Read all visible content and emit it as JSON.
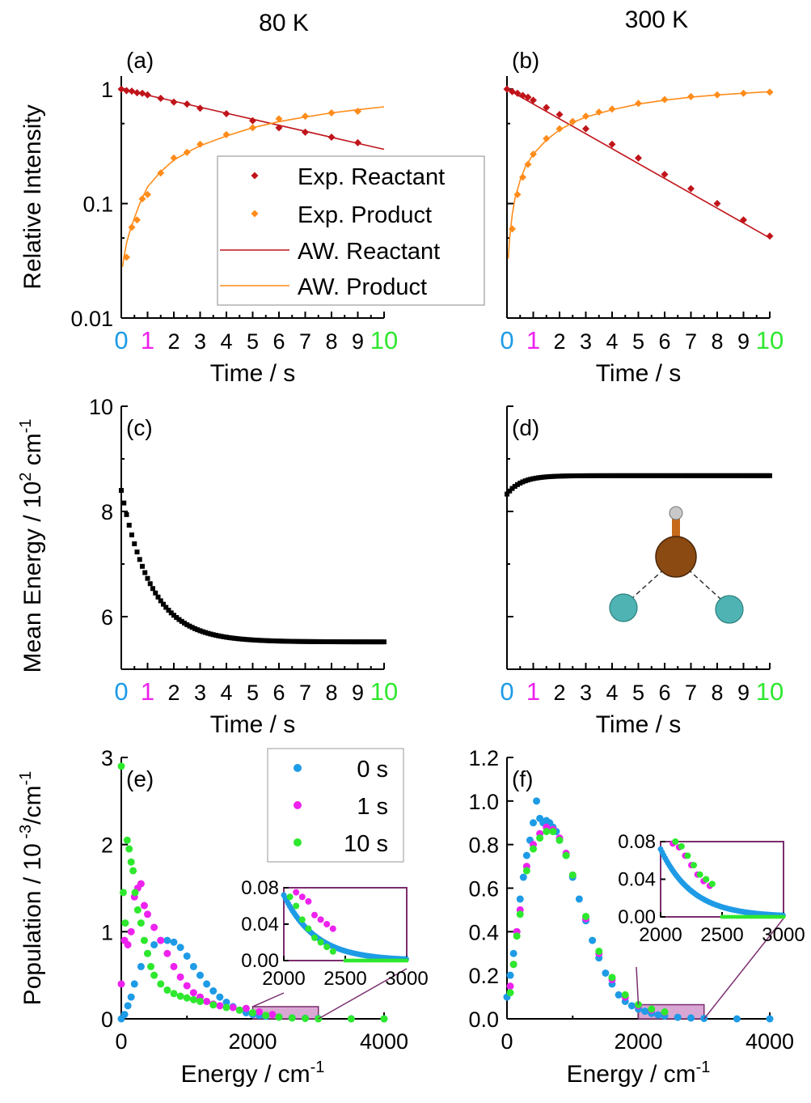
{
  "figure": {
    "column_titles": [
      "80 K",
      "300 K"
    ]
  },
  "colors": {
    "reactant": "#c0141a",
    "product": "#ff8c1a",
    "t0": "#1e9be6",
    "t1": "#ee22ee",
    "t10": "#2ee82e",
    "inset_box": "#7b2d6e",
    "inset_fill": "#d9a7d3",
    "mean_energy": "#000000",
    "atom_center": "#8a4a12",
    "atom_side": "#4fb3b3",
    "atom_top": "#c8c8c8"
  },
  "chart_data": [
    {
      "id": "a",
      "panel_label": "(a)",
      "type": "line+scatter",
      "yscale": "log",
      "xlabel": "Time / s",
      "ylabel": "Relative Intensity",
      "xlim": [
        0,
        10
      ],
      "ylim": [
        0.01,
        1.3
      ],
      "xticks": [
        "0",
        "1",
        "2",
        "3",
        "4",
        "5",
        "6",
        "7",
        "8",
        "9",
        "10"
      ],
      "yticks": [
        {
          "v": 1,
          "t": "1"
        },
        {
          "v": 0.1,
          "t": "0.1"
        },
        {
          "v": 0.01,
          "t": "0.01"
        }
      ],
      "legend": {
        "position": "center-right",
        "entries": [
          "Exp. Reactant",
          "Exp. Product",
          "AW. Reactant",
          "AW. Product"
        ]
      },
      "series": [
        {
          "name": "Exp. Reactant",
          "kind": "scatter",
          "color": "reactant",
          "x": [
            0,
            0.2,
            0.4,
            0.6,
            0.8,
            1.0,
            1.5,
            2.0,
            2.5,
            3.0,
            4.0,
            5.0,
            6.0,
            7.0,
            8.0,
            9.0
          ],
          "y": [
            1.0,
            0.97,
            0.96,
            0.93,
            0.92,
            0.89,
            0.83,
            0.77,
            0.74,
            0.68,
            0.61,
            0.53,
            0.46,
            0.42,
            0.38,
            0.34
          ]
        },
        {
          "name": "Exp. Product",
          "kind": "scatter",
          "color": "product",
          "x": [
            0.2,
            0.4,
            0.6,
            0.8,
            1.0,
            1.5,
            2.0,
            2.5,
            3.0,
            4.0,
            5.0,
            6.0,
            7.0,
            8.0,
            9.0
          ],
          "y": [
            0.034,
            0.062,
            0.072,
            0.11,
            0.12,
            0.185,
            0.25,
            0.28,
            0.33,
            0.4,
            0.46,
            0.55,
            0.58,
            0.62,
            0.64
          ]
        },
        {
          "name": "AW. Reactant",
          "kind": "line",
          "color": "reactant",
          "x": [
            0,
            1,
            2,
            3,
            4,
            5,
            6,
            7,
            8,
            9,
            10
          ],
          "y": [
            1.0,
            0.886,
            0.785,
            0.695,
            0.616,
            0.546,
            0.483,
            0.428,
            0.379,
            0.336,
            0.298
          ]
        },
        {
          "name": "AW. Product",
          "kind": "line",
          "color": "product",
          "x": [
            0.05,
            0.1,
            0.2,
            0.3,
            0.5,
            0.7,
            1.0,
            1.5,
            2.0,
            2.5,
            3.0,
            4.0,
            5.0,
            6.0,
            7.0,
            8.0,
            9.0,
            10.0
          ],
          "y": [
            0.028,
            0.034,
            0.045,
            0.055,
            0.075,
            0.1,
            0.14,
            0.19,
            0.24,
            0.28,
            0.32,
            0.39,
            0.46,
            0.52,
            0.57,
            0.62,
            0.66,
            0.7
          ]
        }
      ]
    },
    {
      "id": "b",
      "panel_label": "(b)",
      "type": "line+scatter",
      "yscale": "log",
      "xlabel": "Time / s",
      "ylabel": "",
      "xlim": [
        0,
        10
      ],
      "ylim": [
        0.01,
        1.3
      ],
      "xticks": [
        "0",
        "1",
        "2",
        "3",
        "4",
        "5",
        "6",
        "7",
        "8",
        "9",
        "10"
      ],
      "series": [
        {
          "name": "Exp. Reactant",
          "kind": "scatter",
          "color": "reactant",
          "x": [
            0,
            0.2,
            0.4,
            0.6,
            0.8,
            1.0,
            1.5,
            2.0,
            2.5,
            3.0,
            4.0,
            5.0,
            6.0,
            7.0,
            8.0,
            9.0,
            10.0
          ],
          "y": [
            1.0,
            0.95,
            0.92,
            0.88,
            0.85,
            0.8,
            0.69,
            0.6,
            0.52,
            0.45,
            0.33,
            0.25,
            0.18,
            0.135,
            0.1,
            0.072,
            0.052
          ]
        },
        {
          "name": "Exp. Product",
          "kind": "scatter",
          "color": "product",
          "x": [
            0.2,
            0.4,
            0.6,
            0.8,
            1.0,
            1.5,
            2.0,
            2.5,
            3.0,
            3.5,
            4.0,
            5.0,
            6.0,
            7.0,
            8.0,
            9.0,
            10.0
          ],
          "y": [
            0.06,
            0.12,
            0.17,
            0.22,
            0.27,
            0.37,
            0.45,
            0.52,
            0.58,
            0.63,
            0.67,
            0.75,
            0.81,
            0.86,
            0.89,
            0.92,
            0.94
          ]
        },
        {
          "name": "AW. Reactant",
          "kind": "line",
          "color": "reactant",
          "x": [
            0,
            10
          ],
          "y": [
            1.0,
            0.05
          ]
        },
        {
          "name": "AW. Product",
          "kind": "line",
          "color": "product",
          "x": [
            0.05,
            0.1,
            0.2,
            0.3,
            0.5,
            0.7,
            1.0,
            1.5,
            2.0,
            2.5,
            3.0,
            4.0,
            5.0,
            6.0,
            7.0,
            8.0,
            9.0,
            10.0
          ],
          "y": [
            0.033,
            0.05,
            0.08,
            0.11,
            0.16,
            0.21,
            0.27,
            0.36,
            0.44,
            0.51,
            0.57,
            0.66,
            0.74,
            0.8,
            0.85,
            0.89,
            0.92,
            0.95
          ]
        }
      ]
    },
    {
      "id": "c",
      "panel_label": "(c)",
      "type": "scatter",
      "xlabel": "Time / s",
      "ylabel": "Mean Energy / 10",
      "ylabel_sup": "2",
      "ylabel_tail": " cm",
      "ylabel_sup2": "-1",
      "xlim": [
        0,
        10
      ],
      "ylim": [
        5,
        10
      ],
      "xticks": [
        "0",
        "1",
        "2",
        "3",
        "4",
        "5",
        "6",
        "7",
        "8",
        "9",
        "10"
      ],
      "yticks": [
        {
          "v": 10,
          "t": "10"
        },
        {
          "v": 8,
          "t": "8"
        },
        {
          "v": 6,
          "t": "6"
        }
      ],
      "series": [
        {
          "name": "",
          "kind": "dense",
          "color": "mean_energy",
          "start": 8.4,
          "end": 5.52,
          "tau": 1.15,
          "dt": 0.1
        }
      ]
    },
    {
      "id": "d",
      "panel_label": "(d)",
      "type": "scatter",
      "xlabel": "Time / s",
      "ylabel": "",
      "xlim": [
        0,
        10
      ],
      "ylim": [
        5,
        10
      ],
      "xticks": [
        "0",
        "1",
        "2",
        "3",
        "4",
        "5",
        "6",
        "7",
        "8",
        "9",
        "10"
      ],
      "series": [
        {
          "name": "",
          "kind": "dense",
          "color": "mean_energy",
          "start": 8.33,
          "end": 8.68,
          "tau": 0.55,
          "dt": 0.1
        }
      ]
    },
    {
      "id": "e",
      "panel_label": "(e)",
      "type": "scatter",
      "xlabel": "Energy / cm",
      "xlabel_sup": "-1",
      "ylabel": "Population  /  10",
      "ylabel_sup": " -3",
      "ylabel_tail": "/cm",
      "ylabel_sup2": "-1",
      "xlim": [
        0,
        4000
      ],
      "ylim": [
        0,
        3
      ],
      "xticks": [
        {
          "v": 0,
          "t": "0"
        },
        {
          "v": 2000,
          "t": "2000"
        },
        {
          "v": 4000,
          "t": "4000"
        }
      ],
      "yticks": [
        {
          "v": 0,
          "t": "0"
        },
        {
          "v": 1,
          "t": "1"
        },
        {
          "v": 2,
          "t": "2"
        },
        {
          "v": 3,
          "t": "3"
        }
      ],
      "legend": {
        "position": "top-right",
        "entries": [
          "0 s",
          "1 s",
          "10 s"
        ]
      },
      "inset": {
        "xlim": [
          2000,
          3000
        ],
        "ylim": [
          0,
          0.08
        ],
        "xticks": [
          "2000",
          "2500",
          "3000"
        ],
        "yticks": [
          "0.00",
          "0.04",
          "0.08"
        ]
      },
      "series": [
        {
          "name": "0 s",
          "color": "t0",
          "x": [
            0,
            50,
            100,
            150,
            200,
            300,
            400,
            500,
            600,
            700,
            800,
            900,
            1000,
            1100,
            1200,
            1300,
            1400,
            1500,
            1600,
            1700,
            1800,
            1900,
            2000,
            2100,
            2200,
            2400,
            2600,
            2800,
            3000,
            3500,
            4000
          ],
          "y": [
            0.0,
            0.05,
            0.15,
            0.25,
            0.4,
            0.6,
            0.75,
            0.85,
            0.9,
            0.9,
            0.88,
            0.82,
            0.72,
            0.6,
            0.5,
            0.4,
            0.32,
            0.25,
            0.19,
            0.14,
            0.1,
            0.07,
            0.05,
            0.04,
            0.03,
            0.02,
            0.012,
            0.007,
            0.004,
            0.001,
            0.0
          ]
        },
        {
          "name": "1 s",
          "color": "t1",
          "x": [
            0,
            50,
            100,
            150,
            200,
            250,
            300,
            350,
            400,
            500,
            600,
            700,
            800,
            900,
            1000,
            1100,
            1200,
            1300,
            1400,
            1500,
            1700,
            1900,
            2100,
            2300
          ],
          "y": [
            0.4,
            0.9,
            0.85,
            1.0,
            1.4,
            1.5,
            1.55,
            1.3,
            1.2,
            1.05,
            0.9,
            0.75,
            0.6,
            0.48,
            0.38,
            0.3,
            0.25,
            0.2,
            0.17,
            0.15,
            0.13,
            0.12,
            0.08,
            0.05
          ]
        },
        {
          "name": "10 s",
          "color": "t10",
          "x": [
            0,
            30,
            60,
            90,
            120,
            150,
            180,
            210,
            250,
            300,
            350,
            400,
            450,
            500,
            600,
            700,
            800,
            900,
            1000,
            1100,
            1200,
            1400,
            1600,
            1800,
            2000,
            2200,
            2400,
            2600,
            2800,
            3000,
            3500,
            4000
          ],
          "y": [
            2.9,
            1.45,
            1.1,
            2.05,
            1.95,
            1.8,
            1.7,
            1.45,
            1.25,
            1.1,
            0.9,
            0.75,
            0.6,
            0.5,
            0.4,
            0.33,
            0.29,
            0.26,
            0.24,
            0.22,
            0.2,
            0.16,
            0.13,
            0.1,
            0.07,
            0.04,
            0.02,
            0.01,
            0.005,
            0.0,
            0.0,
            0.0
          ]
        }
      ]
    },
    {
      "id": "f",
      "panel_label": "(f)",
      "type": "scatter",
      "xlabel": "Energy / cm",
      "xlabel_sup": "-1",
      "ylabel": "",
      "xlim": [
        0,
        4000
      ],
      "ylim": [
        0,
        1.2
      ],
      "xticks": [
        {
          "v": 0,
          "t": "0"
        },
        {
          "v": 2000,
          "t": "2000"
        },
        {
          "v": 4000,
          "t": "4000"
        }
      ],
      "yticks": [
        {
          "v": 0,
          "t": "0.0"
        },
        {
          "v": 0.2,
          "t": "0.2"
        },
        {
          "v": 0.4,
          "t": "0.4"
        },
        {
          "v": 0.6,
          "t": "0.6"
        },
        {
          "v": 0.8,
          "t": "0.8"
        },
        {
          "v": 1.0,
          "t": "1.0"
        },
        {
          "v": 1.2,
          "t": "1.2"
        }
      ],
      "inset": {
        "xlim": [
          2000,
          3000
        ],
        "ylim": [
          0,
          0.08
        ],
        "xticks": [
          "2000",
          "2500",
          "3000"
        ],
        "yticks": [
          "0.00",
          "0.04",
          "0.08"
        ]
      },
      "series": [
        {
          "name": "0 s",
          "color": "t0",
          "x": [
            0,
            50,
            100,
            150,
            200,
            250,
            300,
            350,
            400,
            450,
            500,
            550,
            600,
            650,
            700,
            750,
            800,
            900,
            1000,
            1100,
            1200,
            1300,
            1400,
            1500,
            1600,
            1700,
            1800,
            1900,
            2000,
            2100,
            2200,
            2300,
            2400,
            2600,
            2800,
            3000,
            3500,
            4000
          ],
          "y": [
            0.1,
            0.2,
            0.3,
            0.4,
            0.55,
            0.65,
            0.75,
            0.82,
            0.9,
            1.0,
            0.92,
            0.9,
            0.91,
            0.9,
            0.88,
            0.86,
            0.82,
            0.75,
            0.65,
            0.55,
            0.45,
            0.36,
            0.28,
            0.21,
            0.16,
            0.11,
            0.08,
            0.06,
            0.045,
            0.035,
            0.025,
            0.018,
            0.013,
            0.007,
            0.004,
            0.002,
            0.0,
            0.0
          ]
        },
        {
          "name": "1 s",
          "color": "t1",
          "x": [
            50,
            100,
            150,
            200,
            300,
            400,
            500,
            600,
            700,
            800,
            900,
            1000,
            1200,
            1400,
            1600,
            1800,
            2000,
            2200,
            2400
          ],
          "y": [
            0.15,
            0.25,
            0.4,
            0.5,
            0.7,
            0.8,
            0.85,
            0.88,
            0.87,
            0.83,
            0.76,
            0.66,
            0.46,
            0.3,
            0.18,
            0.1,
            0.06,
            0.04,
            0.03
          ]
        },
        {
          "name": "10 s",
          "color": "t10",
          "x": [
            50,
            100,
            150,
            200,
            300,
            400,
            500,
            600,
            700,
            800,
            900,
            1000,
            1200,
            1400,
            1600,
            1800,
            2000,
            2200,
            2400
          ],
          "y": [
            0.12,
            0.25,
            0.38,
            0.48,
            0.68,
            0.78,
            0.83,
            0.86,
            0.86,
            0.82,
            0.75,
            0.66,
            0.47,
            0.31,
            0.19,
            0.11,
            0.065,
            0.045,
            0.032
          ]
        }
      ]
    }
  ]
}
